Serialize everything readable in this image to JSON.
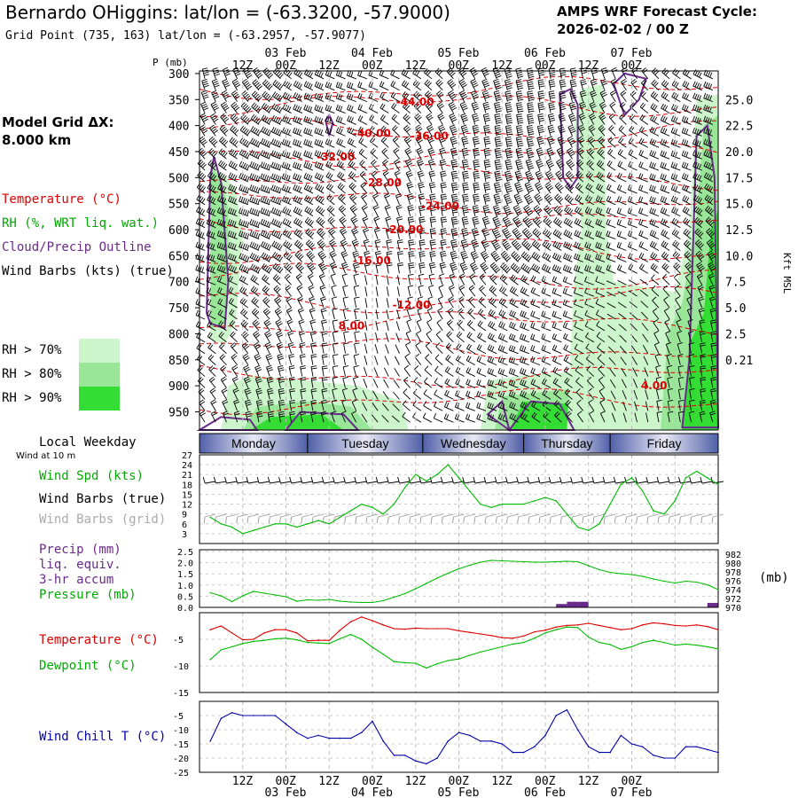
{
  "header": {
    "title": "Bernardo OHiggins:  lat/lon = (-63.3200, -57.9000)",
    "subtitle": "Grid Point (735, 163) lat/lon = (-63.2957, -57.9077)",
    "cycle_line1": "AMPS WRF Forecast Cycle:",
    "cycle_line2": "2026-02-02 / 00  Z"
  },
  "sidebar": {
    "grid_line1": "Model Grid ΔX:",
    "grid_line2": " 8.000 km",
    "temperature": "Temperature (°C)",
    "rh": "RH (%, WRT liq. wat.)",
    "cloud": "Cloud/Precip Outline",
    "wind": "Wind Barbs (kts) (true)",
    "rh70": "RH > 70%",
    "rh80": "RH > 80%",
    "rh90": "RH > 90%",
    "local_weekday": "Local Weekday",
    "wind_10m": "Wind at 10 m",
    "wind_spd": "Wind Spd (kts)",
    "wind_barbs_true": "Wind Barbs (true)",
    "wind_barbs_grid": "Wind Barbs (grid)",
    "precip": "Precip (mm)",
    "liq": "liq. equiv.",
    "accum": "3-hr accum",
    "pressure": "Pressure (mb)",
    "temp2": "Temperature (°C)",
    "dewpoint": "Dewpoint (°C)",
    "windchill": "Wind Chill T (°C)"
  },
  "colors": {
    "temperature": "#dd0000",
    "dewpoint": "#00bb00",
    "windchill": "#0000aa",
    "cloud": "#6a2a8a",
    "rh70": "#ccf5cc",
    "rh80": "#99e699",
    "rh90": "#33dd33",
    "weekday_mid": "#e8e8f4",
    "weekday_edge": "#5060a8"
  },
  "chart_data": [
    {
      "type": "heatmap",
      "name": "cross-section",
      "p_label": "P (mb)",
      "p_ticks": [
        300,
        350,
        400,
        450,
        500,
        550,
        600,
        650,
        700,
        750,
        800,
        850,
        900,
        950
      ],
      "kft_label": "Kft MSL",
      "kft_ticks": [
        "25.0",
        "22.5",
        "20.0",
        "17.5",
        "15.0",
        "12.5",
        "10.0",
        "7.5",
        "5.0",
        "2.5",
        "0.21"
      ],
      "kft_pressure": [
        350,
        400,
        450,
        500,
        550,
        600,
        650,
        700,
        750,
        800,
        850,
        900,
        1000
      ],
      "top_time_labels": [
        "12Z",
        "00Z",
        "12Z",
        "00Z",
        "12Z",
        "00Z",
        "12Z",
        "00Z",
        "12Z",
        "00Z"
      ],
      "top_date_labels": [
        "03 Feb",
        "04 Feb",
        "05 Feb",
        "06 Feb",
        "07 Feb"
      ],
      "bottom_time_labels": [
        "12Z",
        "00Z",
        "12Z",
        "00Z",
        "12Z",
        "00Z",
        "12Z",
        "00Z",
        "12Z",
        "00Z"
      ],
      "bottom_date_labels": [
        "03 Feb",
        "04 Feb",
        "05 Feb",
        "06 Feb",
        "07 Feb"
      ],
      "temperature_contours": [
        {
          "label": "-44.00",
          "hour": 58,
          "p": 355
        },
        {
          "label": "-40.00",
          "hour": 46,
          "p": 415
        },
        {
          "label": "-36.00",
          "hour": 62,
          "p": 420
        },
        {
          "label": "-32.00",
          "hour": 36,
          "p": 460
        },
        {
          "label": "-28.00",
          "hour": 49,
          "p": 510
        },
        {
          "label": "-24.00",
          "hour": 65,
          "p": 555
        },
        {
          "label": "-20.00",
          "hour": 55,
          "p": 600
        },
        {
          "label": "-16.00",
          "hour": 46,
          "p": 660
        },
        {
          "label": "-12.00",
          "hour": 57,
          "p": 745
        },
        {
          "label": "8.00",
          "hour": 42,
          "p": 785
        },
        {
          "label": "4.00",
          "hour": 126,
          "p": 900
        }
      ],
      "weekdays": [
        "Monday",
        "Tuesday",
        "Wednesday",
        "Thursday",
        "Friday"
      ]
    },
    {
      "type": "line",
      "name": "wind-speed",
      "y_ticks": [
        3,
        6,
        9,
        12,
        15,
        18,
        21,
        24,
        27
      ],
      "ylim": [
        0,
        27
      ],
      "hours": [
        3,
        6,
        9,
        12,
        15,
        18,
        21,
        24,
        27,
        30,
        33,
        36,
        39,
        42,
        45,
        48,
        51,
        54,
        57,
        60,
        63,
        66,
        69,
        72,
        75,
        78,
        81,
        84,
        87,
        90,
        93,
        96,
        99,
        102,
        105,
        108,
        111,
        114,
        117,
        120,
        123,
        126,
        129,
        132,
        135,
        138,
        141,
        144
      ],
      "values": [
        8,
        6,
        5,
        3,
        4,
        5,
        6,
        6,
        5,
        6,
        7,
        6,
        8,
        10,
        12,
        11,
        9,
        12,
        17,
        21,
        19,
        21,
        24,
        20,
        16,
        12,
        11,
        12,
        12,
        12,
        13,
        14,
        13,
        9,
        5,
        4,
        6,
        12,
        18,
        20,
        16,
        10,
        9,
        13,
        20,
        22,
        20,
        18
      ]
    },
    {
      "type": "line",
      "name": "pressure-precip",
      "y_ticks": [
        "0.0",
        "0.5",
        "1.0",
        "1.5",
        "2.0",
        "2.5"
      ],
      "ylim": [
        0,
        2.5
      ],
      "pressure_ticks": [
        970,
        972,
        974,
        976,
        978,
        980,
        982
      ],
      "pressure_lim": [
        970,
        983
      ],
      "pressure_unit": "(mb)",
      "hours": [
        3,
        6,
        9,
        12,
        15,
        18,
        21,
        24,
        27,
        30,
        33,
        36,
        39,
        42,
        45,
        48,
        51,
        54,
        57,
        60,
        63,
        66,
        69,
        72,
        75,
        78,
        81,
        84,
        87,
        90,
        93,
        96,
        99,
        102,
        105,
        108,
        111,
        114,
        117,
        120,
        123,
        126,
        129,
        132,
        135,
        138,
        141,
        144
      ],
      "pressure": [
        973.3,
        972.6,
        971.3,
        972.6,
        973.6,
        973.2,
        972.8,
        972.4,
        971.4,
        971.7,
        971.6,
        971.8,
        971.4,
        971.2,
        971.1,
        971.1,
        971.5,
        972.3,
        973.1,
        974.2,
        975.4,
        976.6,
        977.7,
        978.7,
        979.5,
        980.2,
        980.6,
        980.5,
        980.4,
        980.3,
        980.2,
        980.2,
        980.3,
        980.4,
        980.3,
        979.4,
        978.5,
        977.9,
        977.6,
        977.4,
        977.0,
        976.4,
        975.9,
        975.5,
        975.9,
        975.7,
        975.1,
        974.0
      ],
      "precip": [
        0,
        0,
        0,
        0,
        0,
        0,
        0,
        0,
        0,
        0,
        0,
        0,
        0,
        0,
        0,
        0,
        0,
        0,
        0,
        0,
        0,
        0,
        0,
        0,
        0,
        0,
        0,
        0,
        0,
        0,
        0,
        0,
        0,
        0.15,
        0.25,
        0.25,
        0,
        0,
        0,
        0,
        0,
        0,
        0,
        0,
        0,
        0,
        0,
        0.2
      ]
    },
    {
      "type": "line",
      "name": "temperature-dewpoint",
      "y_ticks": [
        -5,
        -10,
        -15
      ],
      "ylim": [
        -15,
        0
      ],
      "hours": [
        3,
        6,
        9,
        12,
        15,
        18,
        21,
        24,
        27,
        30,
        33,
        36,
        39,
        42,
        45,
        48,
        51,
        54,
        57,
        60,
        63,
        66,
        69,
        72,
        75,
        78,
        81,
        84,
        87,
        90,
        93,
        96,
        99,
        102,
        105,
        108,
        111,
        114,
        117,
        120,
        123,
        126,
        129,
        132,
        135,
        138,
        141,
        144
      ],
      "temperature": [
        -3.2,
        -2.5,
        -3.8,
        -5.1,
        -5.0,
        -3.8,
        -3.2,
        -3.2,
        -3.8,
        -5.3,
        -5.2,
        -5.2,
        -3.3,
        -1.7,
        -0.8,
        -1.5,
        -2.3,
        -3.0,
        -3.1,
        -2.9,
        -3.0,
        -3.0,
        -3.0,
        -3.4,
        -3.7,
        -4.0,
        -4.3,
        -4.7,
        -4.8,
        -4.4,
        -3.6,
        -3.3,
        -2.7,
        -2.4,
        -2.3,
        -2.0,
        -2.4,
        -2.8,
        -3.2,
        -3.0,
        -2.3,
        -1.9,
        -2.1,
        -2.4,
        -2.5,
        -2.3,
        -2.6,
        -3.2
      ],
      "dewpoint": [
        -8.8,
        -7.0,
        -6.4,
        -5.8,
        -5.4,
        -5.2,
        -4.9,
        -4.8,
        -5.1,
        -5.6,
        -5.7,
        -5.8,
        -4.9,
        -4.1,
        -5.0,
        -6.5,
        -7.8,
        -9.2,
        -9.4,
        -9.5,
        -10.4,
        -9.6,
        -9.0,
        -8.7,
        -8.0,
        -7.4,
        -6.9,
        -6.4,
        -5.9,
        -5.6,
        -4.8,
        -3.8,
        -3.2,
        -2.7,
        -2.8,
        -4.6,
        -5.6,
        -6.0,
        -6.9,
        -6.4,
        -5.6,
        -5.2,
        -5.6,
        -6.1,
        -5.9,
        -6.1,
        -6.4,
        -6.8
      ]
    },
    {
      "type": "line",
      "name": "wind-chill",
      "y_ticks": [
        -5,
        -10,
        -15,
        -20,
        -25
      ],
      "ylim": [
        -25,
        0
      ],
      "hours": [
        3,
        6,
        9,
        12,
        15,
        18,
        21,
        24,
        27,
        30,
        33,
        36,
        39,
        42,
        45,
        48,
        51,
        54,
        57,
        60,
        63,
        66,
        69,
        72,
        75,
        78,
        81,
        84,
        87,
        90,
        93,
        96,
        99,
        102,
        105,
        108,
        111,
        114,
        117,
        120,
        123,
        126,
        129,
        132,
        135,
        138,
        141,
        144
      ],
      "values": [
        -14,
        -6,
        -4,
        -5,
        -5,
        -5,
        -5,
        -8,
        -11,
        -13,
        -12,
        -13,
        -13,
        -13,
        -11,
        -7,
        -14,
        -19,
        -19,
        -21,
        -22,
        -20,
        -14,
        -11,
        -12,
        -14,
        -14,
        -15,
        -18,
        -18,
        -16,
        -12,
        -5,
        -3,
        -10,
        -16,
        -18,
        -18,
        -12,
        -15,
        -16,
        -19,
        -20,
        -20,
        -16,
        -16,
        -17,
        -18
      ]
    }
  ]
}
